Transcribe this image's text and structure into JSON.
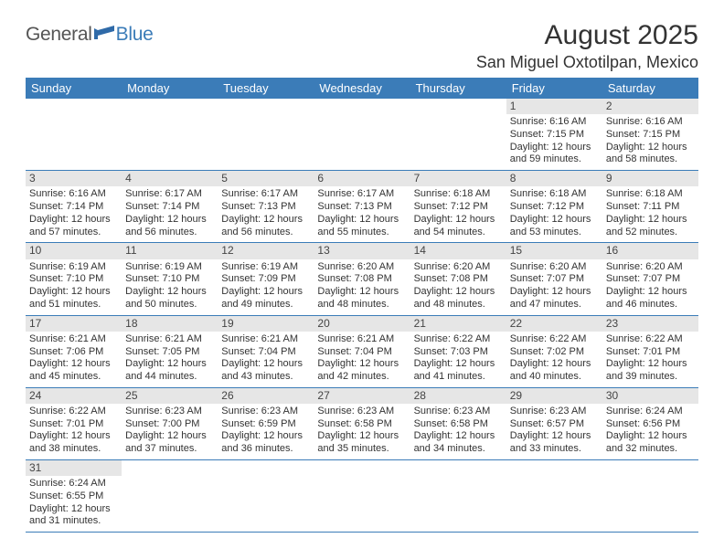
{
  "logo": {
    "general": "General",
    "blue": "Blue",
    "icon_color": "#2f6aa8"
  },
  "title": "August 2025",
  "location": "San Miguel Oxtotilpan, Mexico",
  "colors": {
    "header_bg": "#3b7cb8",
    "header_text": "#ffffff",
    "daynum_bg": "#e6e6e6",
    "rule_color": "#3b7cb8",
    "text_color": "#333333"
  },
  "weekdays": [
    "Sunday",
    "Monday",
    "Tuesday",
    "Wednesday",
    "Thursday",
    "Friday",
    "Saturday"
  ],
  "weeks": [
    [
      null,
      null,
      null,
      null,
      null,
      {
        "d": "1",
        "sr": "6:16 AM",
        "ss": "7:15 PM",
        "dl": "12 hours and 59 minutes."
      },
      {
        "d": "2",
        "sr": "6:16 AM",
        "ss": "7:15 PM",
        "dl": "12 hours and 58 minutes."
      }
    ],
    [
      {
        "d": "3",
        "sr": "6:16 AM",
        "ss": "7:14 PM",
        "dl": "12 hours and 57 minutes."
      },
      {
        "d": "4",
        "sr": "6:17 AM",
        "ss": "7:14 PM",
        "dl": "12 hours and 56 minutes."
      },
      {
        "d": "5",
        "sr": "6:17 AM",
        "ss": "7:13 PM",
        "dl": "12 hours and 56 minutes."
      },
      {
        "d": "6",
        "sr": "6:17 AM",
        "ss": "7:13 PM",
        "dl": "12 hours and 55 minutes."
      },
      {
        "d": "7",
        "sr": "6:18 AM",
        "ss": "7:12 PM",
        "dl": "12 hours and 54 minutes."
      },
      {
        "d": "8",
        "sr": "6:18 AM",
        "ss": "7:12 PM",
        "dl": "12 hours and 53 minutes."
      },
      {
        "d": "9",
        "sr": "6:18 AM",
        "ss": "7:11 PM",
        "dl": "12 hours and 52 minutes."
      }
    ],
    [
      {
        "d": "10",
        "sr": "6:19 AM",
        "ss": "7:10 PM",
        "dl": "12 hours and 51 minutes."
      },
      {
        "d": "11",
        "sr": "6:19 AM",
        "ss": "7:10 PM",
        "dl": "12 hours and 50 minutes."
      },
      {
        "d": "12",
        "sr": "6:19 AM",
        "ss": "7:09 PM",
        "dl": "12 hours and 49 minutes."
      },
      {
        "d": "13",
        "sr": "6:20 AM",
        "ss": "7:08 PM",
        "dl": "12 hours and 48 minutes."
      },
      {
        "d": "14",
        "sr": "6:20 AM",
        "ss": "7:08 PM",
        "dl": "12 hours and 48 minutes."
      },
      {
        "d": "15",
        "sr": "6:20 AM",
        "ss": "7:07 PM",
        "dl": "12 hours and 47 minutes."
      },
      {
        "d": "16",
        "sr": "6:20 AM",
        "ss": "7:07 PM",
        "dl": "12 hours and 46 minutes."
      }
    ],
    [
      {
        "d": "17",
        "sr": "6:21 AM",
        "ss": "7:06 PM",
        "dl": "12 hours and 45 minutes."
      },
      {
        "d": "18",
        "sr": "6:21 AM",
        "ss": "7:05 PM",
        "dl": "12 hours and 44 minutes."
      },
      {
        "d": "19",
        "sr": "6:21 AM",
        "ss": "7:04 PM",
        "dl": "12 hours and 43 minutes."
      },
      {
        "d": "20",
        "sr": "6:21 AM",
        "ss": "7:04 PM",
        "dl": "12 hours and 42 minutes."
      },
      {
        "d": "21",
        "sr": "6:22 AM",
        "ss": "7:03 PM",
        "dl": "12 hours and 41 minutes."
      },
      {
        "d": "22",
        "sr": "6:22 AM",
        "ss": "7:02 PM",
        "dl": "12 hours and 40 minutes."
      },
      {
        "d": "23",
        "sr": "6:22 AM",
        "ss": "7:01 PM",
        "dl": "12 hours and 39 minutes."
      }
    ],
    [
      {
        "d": "24",
        "sr": "6:22 AM",
        "ss": "7:01 PM",
        "dl": "12 hours and 38 minutes."
      },
      {
        "d": "25",
        "sr": "6:23 AM",
        "ss": "7:00 PM",
        "dl": "12 hours and 37 minutes."
      },
      {
        "d": "26",
        "sr": "6:23 AM",
        "ss": "6:59 PM",
        "dl": "12 hours and 36 minutes."
      },
      {
        "d": "27",
        "sr": "6:23 AM",
        "ss": "6:58 PM",
        "dl": "12 hours and 35 minutes."
      },
      {
        "d": "28",
        "sr": "6:23 AM",
        "ss": "6:58 PM",
        "dl": "12 hours and 34 minutes."
      },
      {
        "d": "29",
        "sr": "6:23 AM",
        "ss": "6:57 PM",
        "dl": "12 hours and 33 minutes."
      },
      {
        "d": "30",
        "sr": "6:24 AM",
        "ss": "6:56 PM",
        "dl": "12 hours and 32 minutes."
      }
    ],
    [
      {
        "d": "31",
        "sr": "6:24 AM",
        "ss": "6:55 PM",
        "dl": "12 hours and 31 minutes."
      },
      null,
      null,
      null,
      null,
      null,
      null
    ]
  ],
  "labels": {
    "sunrise": "Sunrise:",
    "sunset": "Sunset:",
    "daylight": "Daylight:"
  }
}
